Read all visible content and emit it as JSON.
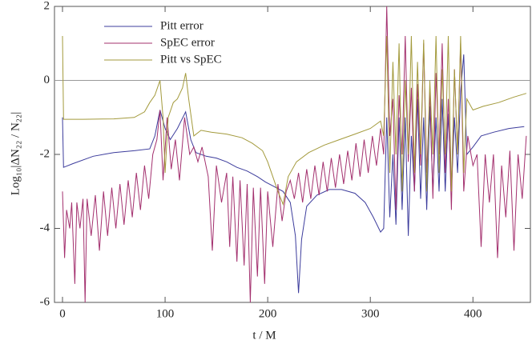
{
  "chart_data": {
    "type": "line",
    "xlabel": "t / M",
    "ylabel": "Log₁₀|ΔN₂₂ / N₂₂|",
    "xlim": [
      -7.8,
      456
    ],
    "ylim": [
      -6,
      2
    ],
    "xticks": [
      0,
      100,
      200,
      300,
      400
    ],
    "yticks": [
      -6,
      -4,
      -2,
      0,
      2
    ],
    "hline": 0,
    "legend": "upper left",
    "series": [
      {
        "name": "Pitt error",
        "color": "#3c3c9c",
        "x": [
          0,
          1,
          10,
          30,
          50,
          70,
          85,
          90,
          95,
          100,
          105,
          112,
          120,
          125,
          130,
          140,
          150,
          160,
          170,
          180,
          190,
          198,
          205,
          215,
          222,
          227,
          230,
          233,
          238,
          248,
          260,
          272,
          285,
          295,
          303,
          310,
          313,
          316,
          319,
          322,
          325,
          328,
          331,
          334,
          337,
          340,
          343,
          346,
          349,
          352,
          355,
          358,
          361,
          364,
          367,
          370,
          373,
          376,
          379,
          382,
          385,
          388,
          391,
          394,
          400,
          408,
          420,
          435,
          450
        ],
        "values": [
          -1.0,
          -2.35,
          -2.25,
          -2.05,
          -1.95,
          -1.9,
          -1.85,
          -1.5,
          -0.8,
          -1.3,
          -1.6,
          -1.3,
          -0.85,
          -1.6,
          -1.95,
          -2.05,
          -2.1,
          -2.2,
          -2.35,
          -2.45,
          -2.6,
          -2.75,
          -2.85,
          -3.0,
          -3.3,
          -4.2,
          -5.75,
          -4.3,
          -3.4,
          -3.1,
          -2.95,
          -2.95,
          -3.05,
          -3.3,
          -3.7,
          -4.1,
          -4.0,
          -1.0,
          -3.7,
          -2.0,
          -3.9,
          -1.0,
          -3.5,
          -1.0,
          -4.2,
          -1.5,
          -3.0,
          -0.5,
          -3.2,
          -1.0,
          -3.5,
          -0.7,
          -3.0,
          -1.0,
          -3.0,
          -0.5,
          -3.0,
          -0.9,
          -3.0,
          -1.0,
          -2.5,
          -0.3,
          0.7,
          -2.0,
          -1.8,
          -1.5,
          -1.4,
          -1.3,
          -1.25
        ]
      },
      {
        "name": "SpEC error",
        "color": "#a3306e",
        "x": [
          0,
          2,
          4,
          7,
          9,
          12,
          14,
          17,
          20,
          22,
          24,
          28,
          32,
          36,
          40,
          44,
          48,
          52,
          56,
          60,
          64,
          68,
          72,
          76,
          80,
          84,
          88,
          92,
          95,
          98,
          102,
          106,
          110,
          114,
          119,
          124,
          128,
          132,
          136,
          142,
          146,
          150,
          155,
          160,
          163,
          166,
          170,
          173,
          177,
          180,
          183,
          186,
          190,
          193,
          197,
          200,
          205,
          210,
          214,
          218,
          222,
          226,
          230,
          234,
          238,
          242,
          246,
          250,
          254,
          258,
          262,
          266,
          270,
          274,
          278,
          282,
          286,
          290,
          294,
          298,
          302,
          306,
          310,
          313,
          316,
          319,
          322,
          325,
          328,
          331,
          334,
          337,
          340,
          343,
          346,
          349,
          352,
          355,
          358,
          361,
          364,
          367,
          370,
          373,
          376,
          379,
          382,
          385,
          388,
          391,
          395,
          400,
          404,
          408,
          412,
          416,
          420,
          424,
          428,
          432,
          436,
          440,
          444,
          448,
          452
        ],
        "values": [
          -3.0,
          -4.8,
          -3.5,
          -4.0,
          -3.3,
          -5.5,
          -3.3,
          -4.0,
          -3.2,
          -6.0,
          -3.2,
          -4.2,
          -3.1,
          -4.6,
          -3.0,
          -4.2,
          -2.9,
          -4.0,
          -2.8,
          -3.9,
          -2.7,
          -3.7,
          -2.5,
          -3.5,
          -2.3,
          -3.2,
          -2.0,
          -1.6,
          -0.8,
          -2.7,
          -1.0,
          -2.4,
          -1.6,
          -2.7,
          -1.0,
          -2.0,
          -1.8,
          -2.2,
          -1.8,
          -2.6,
          -4.6,
          -2.3,
          -3.3,
          -2.5,
          -4.5,
          -2.6,
          -4.9,
          -2.7,
          -5.0,
          -2.8,
          -6.0,
          -2.9,
          -5.3,
          -2.9,
          -5.5,
          -3.0,
          -4.5,
          -2.8,
          -3.8,
          -3.0,
          -2.7,
          -3.2,
          -2.5,
          -3.3,
          -2.4,
          -3.2,
          -2.3,
          -3.1,
          -2.2,
          -3.0,
          -2.1,
          -2.9,
          -2.0,
          -2.8,
          -1.9,
          -2.7,
          -1.7,
          -2.6,
          -1.6,
          -2.5,
          -1.5,
          -2.3,
          -1.3,
          -2.0,
          2.0,
          -1.5,
          -0.5,
          -3.5,
          -0.4,
          -2.0,
          1.2,
          -2.2,
          -0.2,
          -3.0,
          -0.1,
          -2.3,
          1.0,
          -2.5,
          -0.3,
          -3.2,
          0.2,
          -2.0,
          1.0,
          -2.5,
          -0.5,
          -3.5,
          0.3,
          -2.0,
          1.0,
          -3.0,
          -1.5,
          -2.3,
          -2.0,
          -4.5,
          -2.0,
          -3.3,
          -2.0,
          -4.8,
          -2.3,
          -3.7,
          -1.9,
          -4.6,
          -2.0,
          -3.2,
          -1.5
        ]
      },
      {
        "name": "Pitt vs SpEC",
        "color": "#a39a3c",
        "x": [
          0,
          1,
          20,
          50,
          70,
          80,
          85,
          90,
          95,
          98,
          100,
          103,
          108,
          112,
          117,
          120,
          123,
          128,
          135,
          145,
          160,
          175,
          185,
          195,
          200,
          205,
          210,
          215,
          220,
          228,
          240,
          255,
          270,
          285,
          300,
          310,
          313,
          316,
          319,
          322,
          325,
          328,
          331,
          334,
          337,
          340,
          343,
          346,
          349,
          352,
          355,
          358,
          361,
          364,
          367,
          370,
          373,
          376,
          379,
          382,
          385,
          388,
          391,
          394,
          400,
          410,
          425,
          440,
          452
        ],
        "values": [
          1.2,
          -1.05,
          -1.05,
          -1.04,
          -1.0,
          -0.85,
          -0.6,
          -0.4,
          0.0,
          -1.0,
          -2.5,
          -1.0,
          -0.6,
          -0.5,
          -0.2,
          0.2,
          -0.5,
          -1.5,
          -1.35,
          -1.4,
          -1.45,
          -1.55,
          -1.7,
          -1.9,
          -2.2,
          -2.6,
          -3.0,
          -3.35,
          -2.6,
          -2.2,
          -1.95,
          -1.75,
          -1.6,
          -1.45,
          -1.3,
          -1.1,
          -1.5,
          1.2,
          -2.5,
          0.5,
          -2.0,
          1.0,
          -3.0,
          0.0,
          -2.0,
          1.2,
          -2.5,
          0.5,
          -2.0,
          1.1,
          -3.0,
          0.0,
          -2.0,
          1.2,
          -2.5,
          0.3,
          -2.0,
          1.2,
          -3.0,
          0.3,
          -2.0,
          1.2,
          -2.5,
          -0.5,
          -0.8,
          -0.7,
          -0.6,
          -0.45,
          -0.35
        ]
      }
    ]
  }
}
